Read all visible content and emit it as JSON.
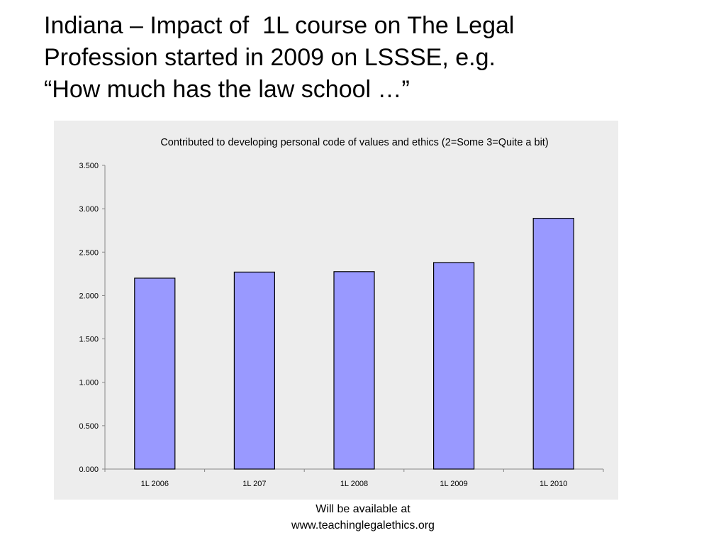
{
  "slide": {
    "title_lines": [
      "Indiana – Impact of  1L course on The Legal",
      "Profession started in 2009 on LSSSE, e.g.",
      "“How much has the law school …”"
    ],
    "footer_lines": [
      "Will be available at",
      "www.teachinglegalethics.org"
    ]
  },
  "chart_data": {
    "type": "bar",
    "title": "Contributed to developing personal code of values and ethics (2=Some 3=Quite a bit)",
    "categories": [
      "1L 2006",
      "1L 207",
      "1L 2008",
      "1L 2009",
      "1L 2010"
    ],
    "values": [
      2.2,
      2.27,
      2.275,
      2.38,
      2.89
    ],
    "ylim": [
      0,
      3.5
    ],
    "yticks": [
      "0.000",
      "0.500",
      "1.000",
      "1.500",
      "2.000",
      "2.500",
      "3.000",
      "3.500"
    ],
    "xlabel": "",
    "ylabel": "",
    "grid": false,
    "legend": "none",
    "bar_color": "#9999ff",
    "bar_border": "#000000",
    "background": "#ededed"
  }
}
